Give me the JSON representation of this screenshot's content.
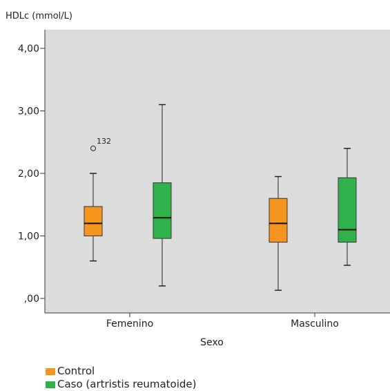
{
  "chart_data": {
    "type": "boxplot",
    "ylabel": "HDLc (mmol/L)",
    "xlabel": "Sexo",
    "ylim": [
      0,
      4
    ],
    "yticks": [
      {
        "value": 0,
        "label": ",00"
      },
      {
        "value": 1,
        "label": "1,00"
      },
      {
        "value": 2,
        "label": "2,00"
      },
      {
        "value": 3,
        "label": "3,00"
      },
      {
        "value": 4,
        "label": "4,00"
      }
    ],
    "categories": [
      "Femenino",
      "Masculino"
    ],
    "series": [
      {
        "name": "Control",
        "color": "#f5941e",
        "boxes": [
          {
            "category": "Femenino",
            "min": 0.6,
            "q1": 1.0,
            "median": 1.2,
            "q3": 1.47,
            "max": 2.0
          },
          {
            "category": "Masculino",
            "min": 0.13,
            "q1": 0.9,
            "median": 1.2,
            "q3": 1.6,
            "max": 1.95
          }
        ]
      },
      {
        "name": "Caso (artristis reumatoide)",
        "color": "#2fb24a",
        "boxes": [
          {
            "category": "Femenino",
            "min": 0.2,
            "q1": 0.96,
            "median": 1.29,
            "q3": 1.85,
            "max": 3.1
          },
          {
            "category": "Masculino",
            "min": 0.53,
            "q1": 0.9,
            "median": 1.1,
            "q3": 1.93,
            "max": 2.4
          }
        ]
      }
    ],
    "outliers": [
      {
        "category": "Femenino",
        "series": "Control",
        "value": 2.4,
        "label": "132"
      }
    ],
    "legend_position": "bottom-left",
    "grid": false,
    "plot_background": "#dcdcdc"
  }
}
